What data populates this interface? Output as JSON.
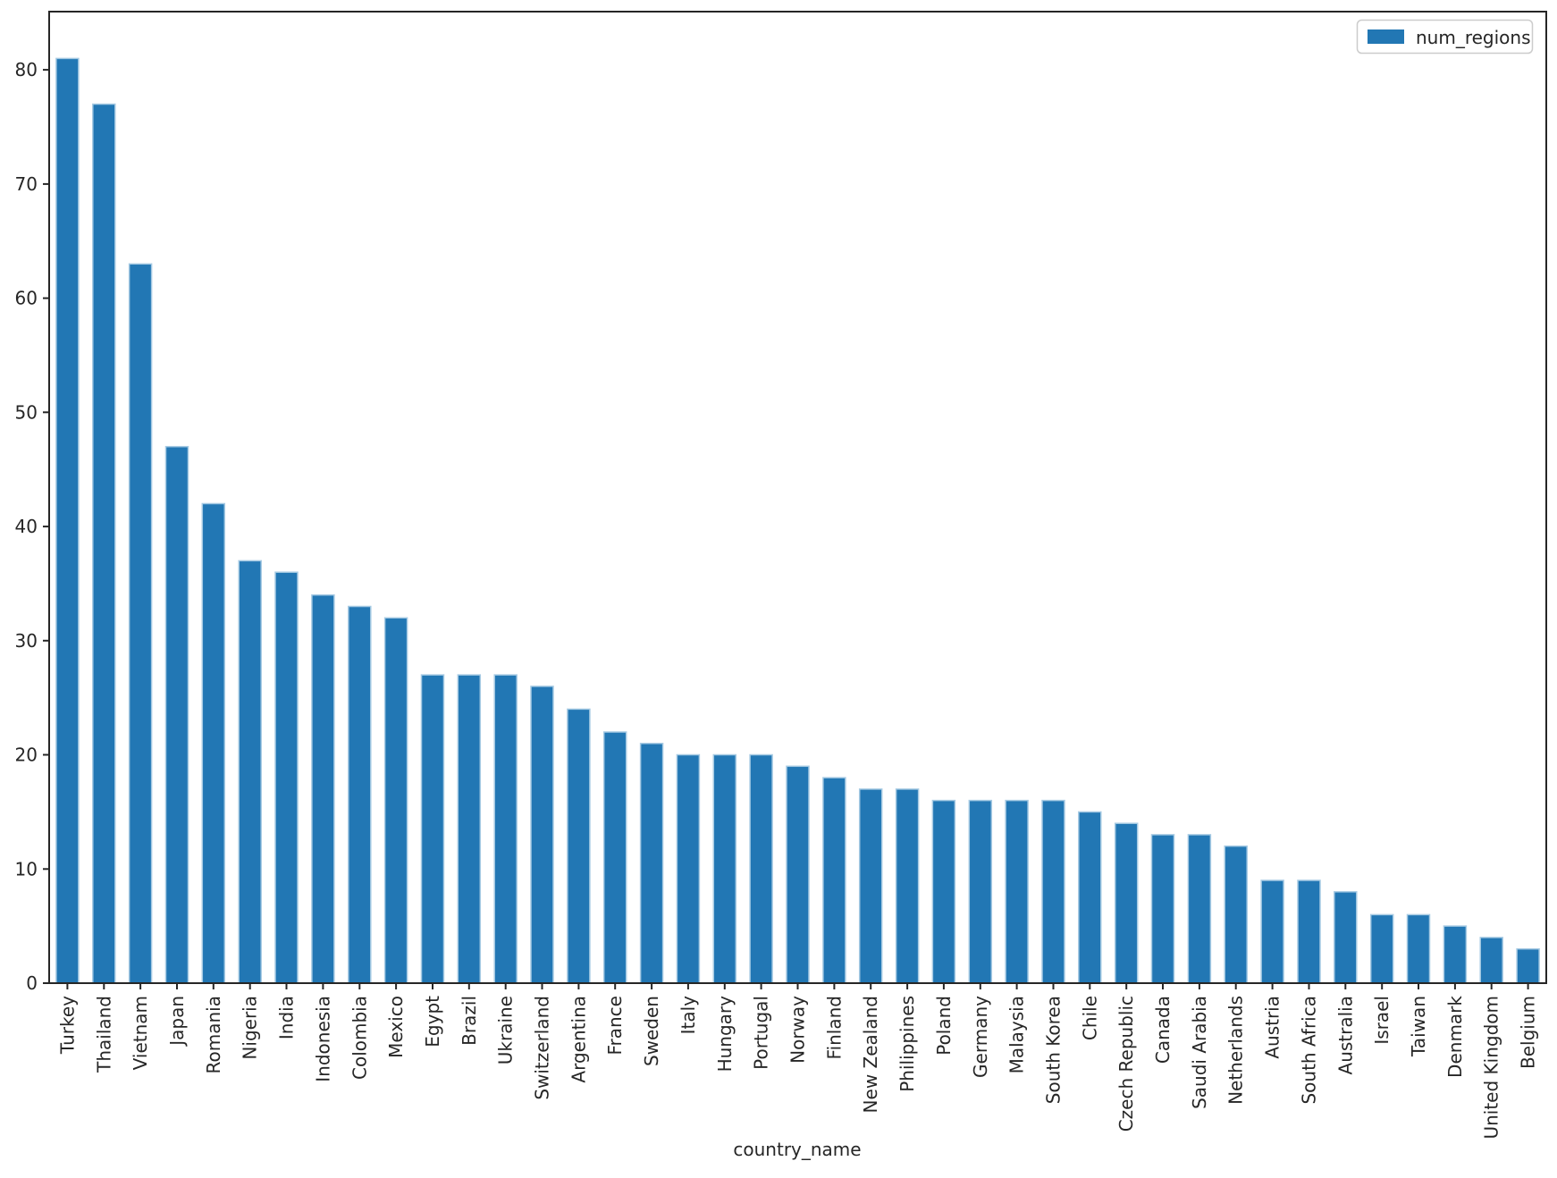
{
  "chart_data": {
    "type": "bar",
    "title": "",
    "xlabel": "country_name",
    "ylabel": "",
    "legend_position": "upper right",
    "grid": false,
    "ylim": [
      0,
      85.1
    ],
    "yticks": [
      0,
      10,
      20,
      30,
      40,
      50,
      60,
      70,
      80
    ],
    "categories": [
      "Turkey",
      "Thailand",
      "Vietnam",
      "Japan",
      "Romania",
      "Nigeria",
      "India",
      "Indonesia",
      "Colombia",
      "Mexico",
      "Egypt",
      "Brazil",
      "Ukraine",
      "Switzerland",
      "Argentina",
      "France",
      "Sweden",
      "Italy",
      "Hungary",
      "Portugal",
      "Norway",
      "Finland",
      "New Zealand",
      "Philippines",
      "Poland",
      "Germany",
      "Malaysia",
      "South Korea",
      "Chile",
      "Czech Republic",
      "Canada",
      "Saudi Arabia",
      "Netherlands",
      "Austria",
      "South Africa",
      "Australia",
      "Israel",
      "Taiwan",
      "Denmark",
      "United Kingdom",
      "Belgium"
    ],
    "series": [
      {
        "name": "num_regions",
        "values": [
          81,
          77,
          63,
          47,
          42,
          37,
          36,
          34,
          33,
          32,
          27,
          27,
          27,
          26,
          24,
          22,
          21,
          20,
          20,
          20,
          19,
          18,
          17,
          17,
          16,
          16,
          16,
          16,
          15,
          14,
          13,
          13,
          12,
          9,
          9,
          8,
          6,
          6,
          5,
          4,
          3
        ]
      }
    ],
    "colors": {
      "bar_fill": "#2277b4",
      "bar_edge": "#a6cae3",
      "axis": "#262626",
      "text": "#262626",
      "legend_border": "#cccccc",
      "background": "#ffffff"
    }
  }
}
